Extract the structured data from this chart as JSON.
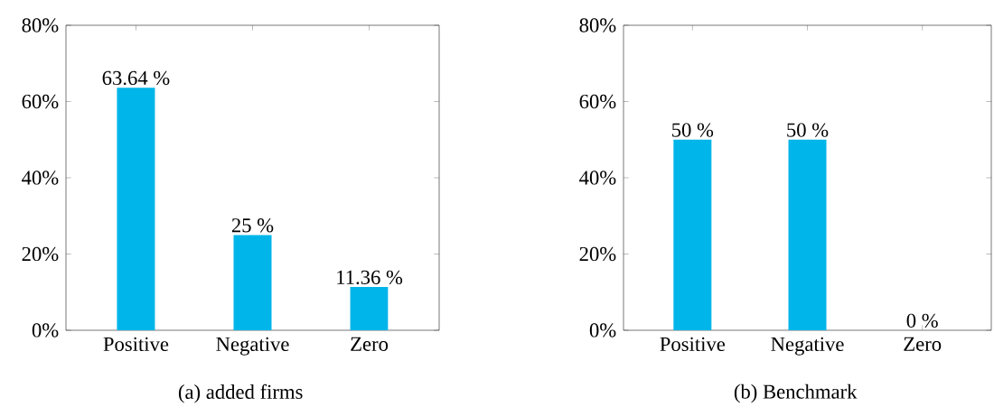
{
  "chart_data": [
    {
      "type": "bar",
      "categories": [
        "Positive",
        "Negative",
        "Zero"
      ],
      "values": [
        63.64,
        25,
        11.36
      ],
      "value_labels": [
        "63.64 %",
        "25 %",
        "11.36 %"
      ],
      "color": "#00b5e9",
      "ylim": [
        0,
        80
      ],
      "yticks": [
        {
          "value": 0,
          "label": "0%"
        },
        {
          "value": 20,
          "label": "20%"
        },
        {
          "value": 40,
          "label": "40%"
        },
        {
          "value": 60,
          "label": "60%"
        },
        {
          "value": 80,
          "label": "80%"
        }
      ],
      "annotations": [
        "(a) added firms"
      ]
    },
    {
      "type": "bar",
      "categories": [
        "Positive",
        "Negative",
        "Zero"
      ],
      "values": [
        50,
        50,
        0
      ],
      "value_labels": [
        "50 %",
        "50 %",
        "0 %"
      ],
      "color": "#00b5e9",
      "ylim": [
        0,
        80
      ],
      "yticks": [
        {
          "value": 0,
          "label": "0%"
        },
        {
          "value": 20,
          "label": "20%"
        },
        {
          "value": 40,
          "label": "40%"
        },
        {
          "value": 60,
          "label": "60%"
        },
        {
          "value": 80,
          "label": "80%"
        }
      ],
      "annotations": [
        "(b) Benchmark"
      ]
    }
  ]
}
